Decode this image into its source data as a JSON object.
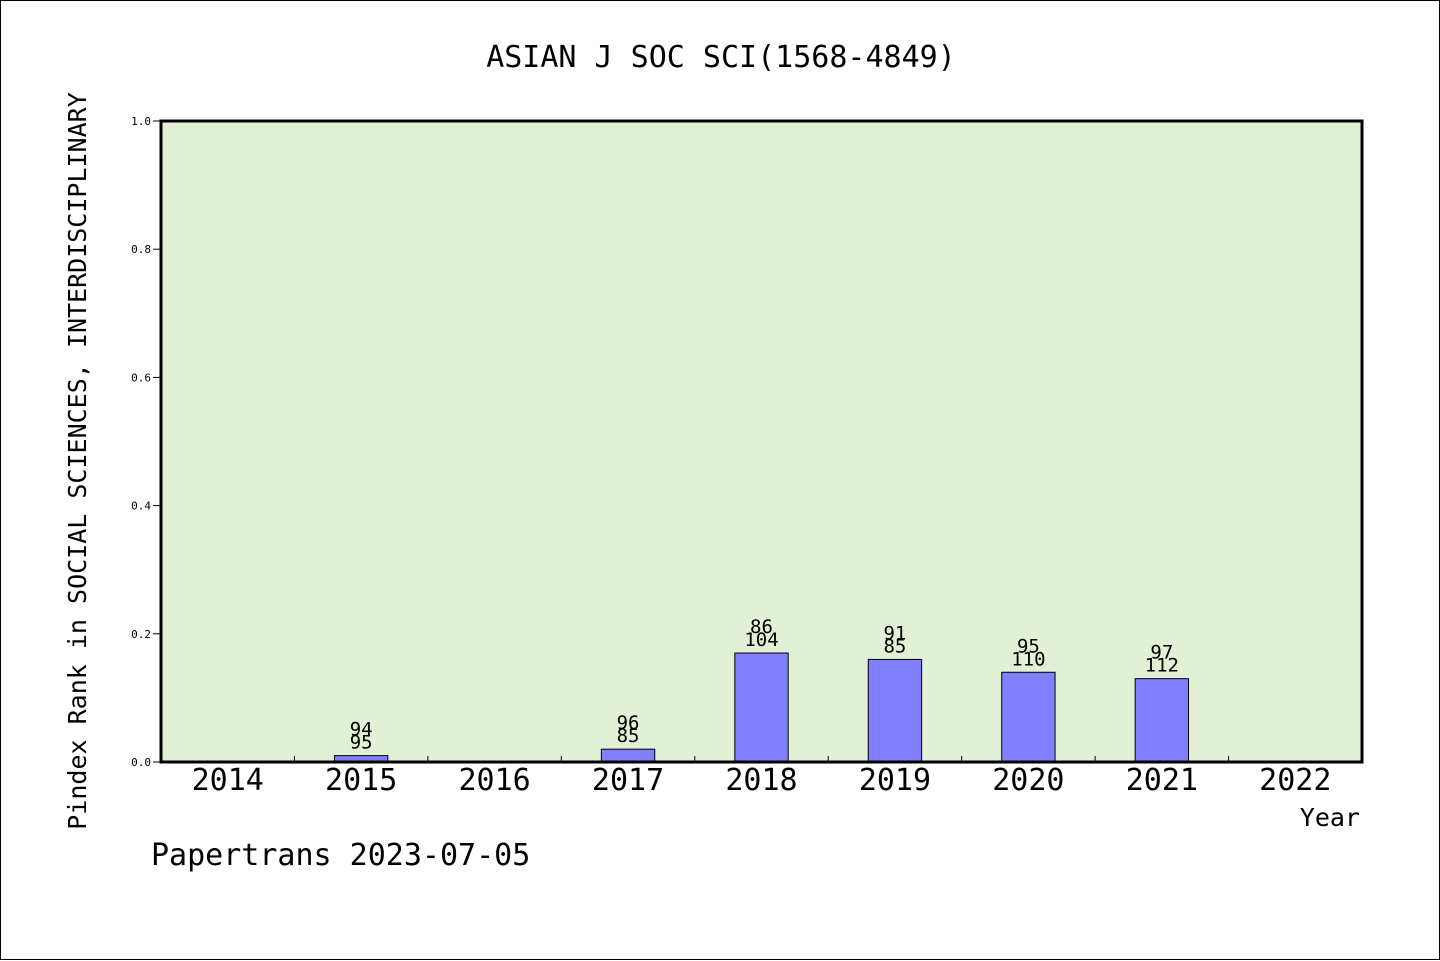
{
  "chart_data": {
    "type": "bar",
    "title": "ASIAN J SOC SCI(1568-4849)",
    "ylabel": "Pindex Rank in SOCIAL SCIENCES, INTERDISCIPLINARY",
    "xlabel": "Year",
    "footer": "Papertrans 2023-07-05",
    "ylim": [
      0,
      1.0
    ],
    "yticks": [
      "0.0",
      "0.2",
      "0.4",
      "0.6",
      "0.8",
      "1.0"
    ],
    "categories": [
      "2014",
      "2015",
      "2016",
      "2017",
      "2018",
      "2019",
      "2020",
      "2021",
      "2022"
    ],
    "values": [
      0,
      0.01,
      0,
      0.02,
      0.17,
      0.16,
      0.14,
      0.13,
      0
    ],
    "labels_top": [
      "",
      "94",
      "",
      "96",
      "86",
      "91",
      "95",
      "97",
      ""
    ],
    "labels_bottom": [
      "",
      "95",
      "",
      "85",
      "104",
      "85",
      "110",
      "112",
      ""
    ],
    "grid": false,
    "legend": "none",
    "colors": {
      "plot_bg": "#e2f0d6",
      "bar": "#8080ff",
      "bar_edge": "#000000"
    }
  }
}
